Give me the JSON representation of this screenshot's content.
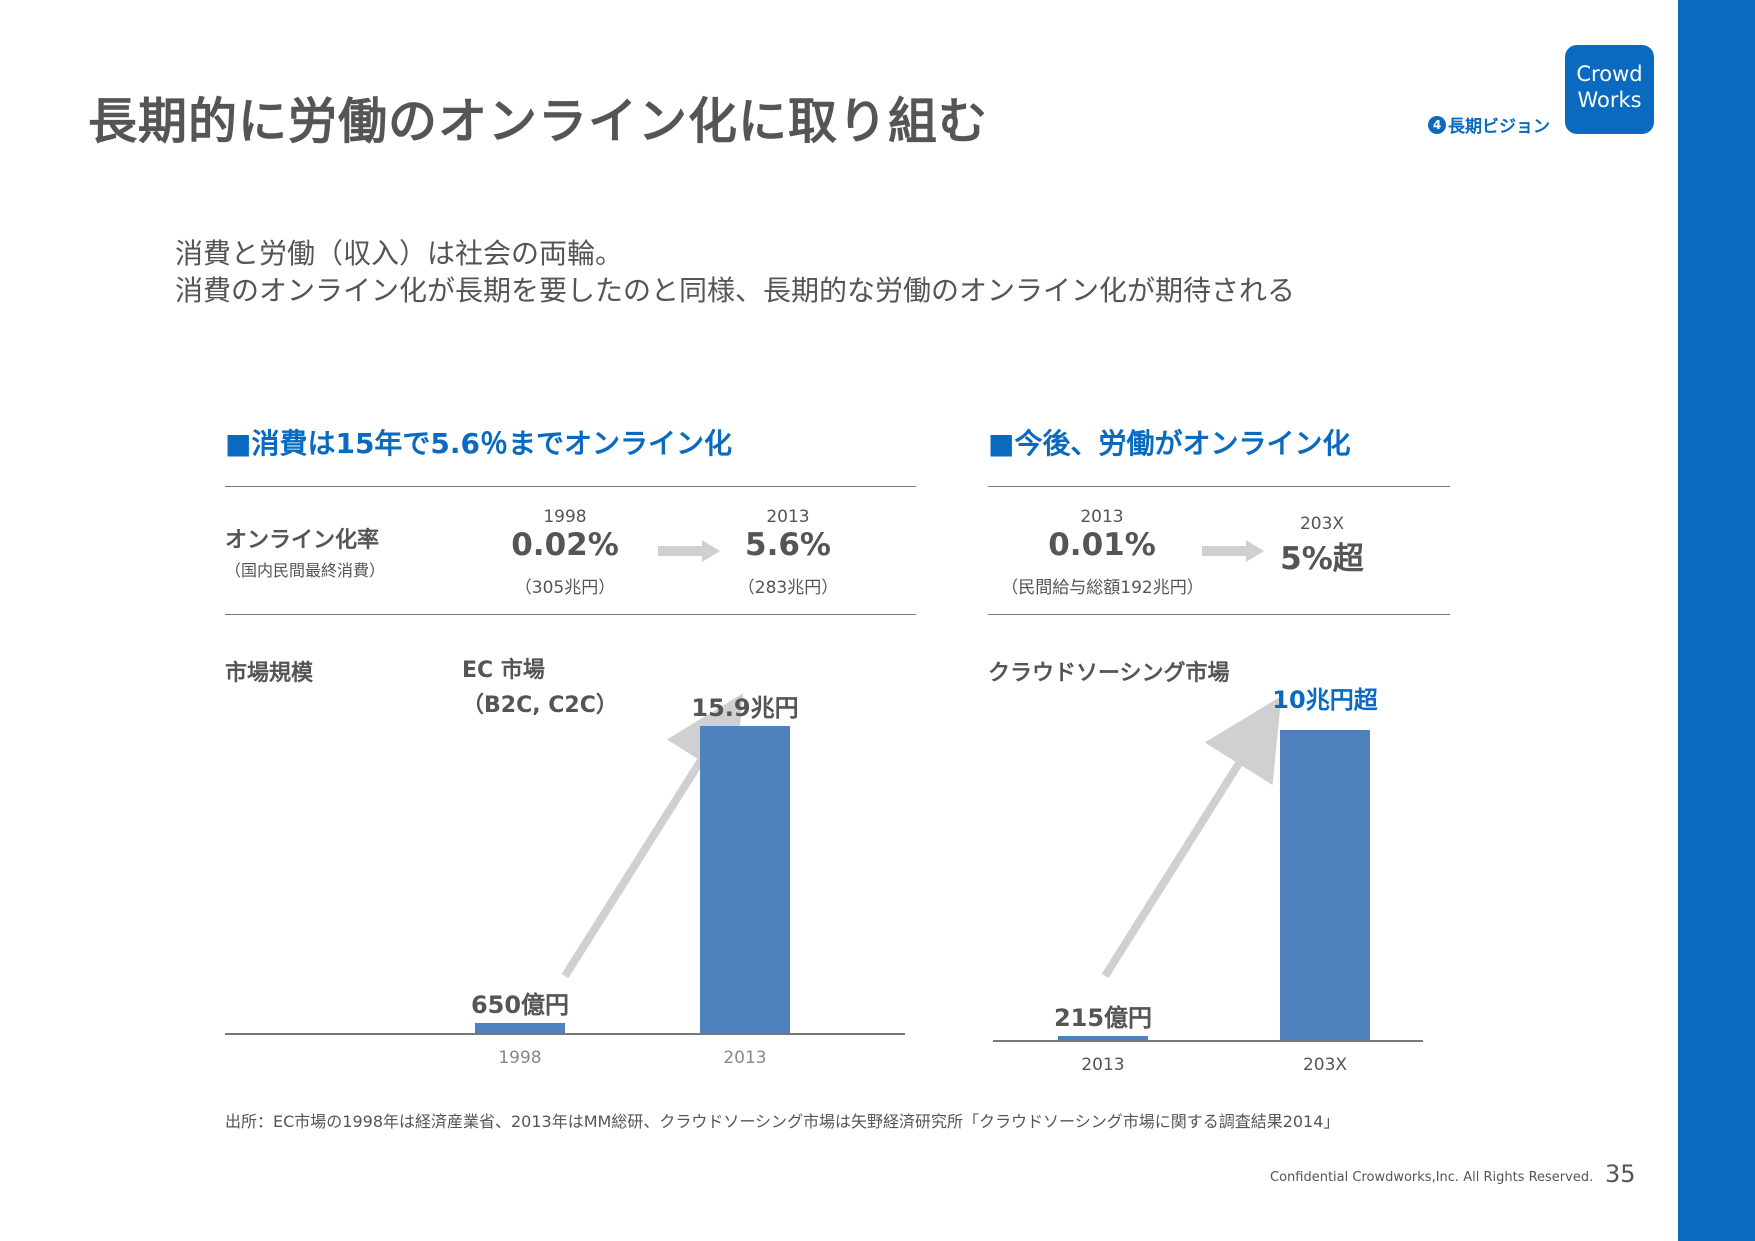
{
  "slide": {
    "title": "長期的に労働のオンライン化に取り組む",
    "section_num": "4",
    "section_label": "長期ビジョン",
    "logo_line1": "Crowd",
    "logo_line2": "Works",
    "lead_line1": "消費と労働（収入）は社会の両輪。",
    "lead_line2": "消費のオンライン化が長期を要したのと同様、長期的な労働のオンライン化が期待される"
  },
  "left": {
    "heading": "■消費は15年で5.6％までオンライン化",
    "rate_label": "オンライン化率",
    "rate_sub": "（国内民間最終消費）",
    "from": {
      "year": "1998",
      "value": "0.02%",
      "note": "（305兆円）"
    },
    "to": {
      "year": "2013",
      "value": "5.6%",
      "note": "（283兆円）"
    },
    "market_label": "市場規模",
    "chart_title_1": "EC 市場",
    "chart_title_2": "（B2C, C2C）"
  },
  "right": {
    "heading": "■今後、労働がオンライン化",
    "from": {
      "year": "2013",
      "value": "0.01%",
      "note": "（民間給与総額192兆円）"
    },
    "to": {
      "year": "203X",
      "value": "5%超"
    },
    "market_label": "クラウドソーシング市場"
  },
  "chart_data": [
    {
      "type": "bar",
      "title": "EC 市場（B2C, C2C）",
      "categories": [
        "1998",
        "2013"
      ],
      "values": [
        0.065,
        15.9
      ],
      "unit": "兆円",
      "data_labels": [
        "650億円",
        "15.9兆円"
      ],
      "colors": {
        "bar": "#4f81bd",
        "arrow": "#d0d0d0"
      }
    },
    {
      "type": "bar",
      "title": "クラウドソーシング市場",
      "categories": [
        "2013",
        "203X"
      ],
      "values": [
        0.0215,
        10
      ],
      "unit": "兆円",
      "data_labels": [
        "215億円",
        "10兆円超"
      ],
      "colors": {
        "bar": "#4f81bd",
        "label_highlight": "#0a6abf",
        "arrow": "#d0d0d0"
      }
    }
  ],
  "source": "出所：EC市場の1998年は経済産業省、2013年はMM総研、クラウドソーシング市場は矢野経済研究所「クラウドソーシング市場に関する調査結果2014」",
  "footer": "Confidential Crowdworks,Inc. All Rights Reserved.",
  "page_number": "35"
}
